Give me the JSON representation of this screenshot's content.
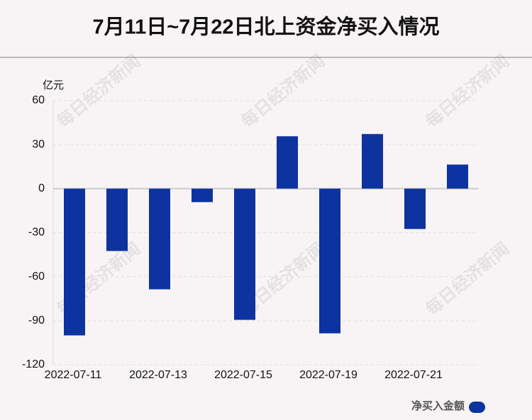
{
  "chart_data": {
    "type": "bar",
    "title": "7月11日~7月22日北上资金净买入情况",
    "y_label": "亿元",
    "watermark": "每日经济新闻",
    "categories": [
      "2022-07-11",
      null,
      "2022-07-13",
      null,
      "2022-07-15",
      null,
      "2022-07-19",
      null,
      "2022-07-21",
      null
    ],
    "series": [
      {
        "name": "净买入金额",
        "color": "#0d33a0",
        "values": [
          -100,
          -42.5,
          -68.6,
          -9.2,
          -89.4,
          35.7,
          -98.6,
          37.2,
          -27.5,
          16.4
        ]
      }
    ],
    "ylim": [
      -120,
      60
    ],
    "yticks": [
      -120,
      -90,
      -60,
      -30,
      0,
      30,
      60
    ],
    "grid": true,
    "legend": "bottom-right"
  }
}
